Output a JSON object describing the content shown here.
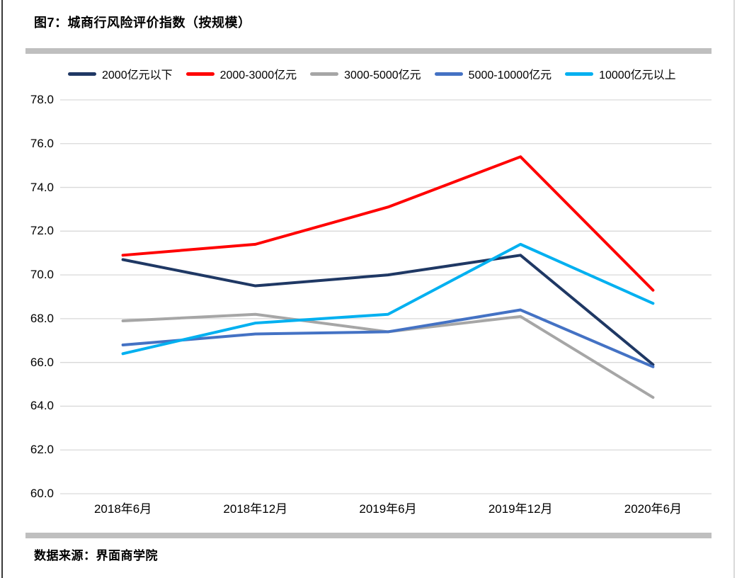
{
  "page": {
    "title": "图7：城商行风险评价指数（按规模）",
    "source": "数据来源：界面商学院"
  },
  "chart_data": {
    "type": "line",
    "title": "图7：城商行风险评价指数（按规模）",
    "categories": [
      "2018年6月",
      "2018年12月",
      "2019年6月",
      "2019年12月",
      "2020年6月"
    ],
    "series": [
      {
        "name": "2000亿元以下",
        "color": "#1F3864",
        "values": [
          70.7,
          69.5,
          70.0,
          70.9,
          65.9
        ]
      },
      {
        "name": "2000-3000亿元",
        "color": "#FF0000",
        "values": [
          70.9,
          71.4,
          73.1,
          75.4,
          69.3
        ]
      },
      {
        "name": "3000-5000亿元",
        "color": "#A6A6A6",
        "values": [
          67.9,
          68.2,
          67.4,
          68.1,
          64.4
        ]
      },
      {
        "name": "5000-10000亿元",
        "color": "#4472C4",
        "values": [
          66.8,
          67.3,
          67.4,
          68.4,
          65.8
        ]
      },
      {
        "name": "10000亿元以上",
        "color": "#00B0F0",
        "values": [
          66.4,
          67.8,
          68.2,
          71.4,
          68.7
        ]
      }
    ],
    "ylim": [
      60,
      78
    ],
    "ytick_step": 2,
    "ytick_labels": [
      "60.0",
      "62.0",
      "64.0",
      "66.0",
      "68.0",
      "70.0",
      "72.0",
      "74.0",
      "76.0",
      "78.0"
    ],
    "grid": true,
    "legend_position": "top",
    "gridline_color": "#D9D9D9",
    "divider_color": "#BFBFBF",
    "text_color": "#000000"
  }
}
